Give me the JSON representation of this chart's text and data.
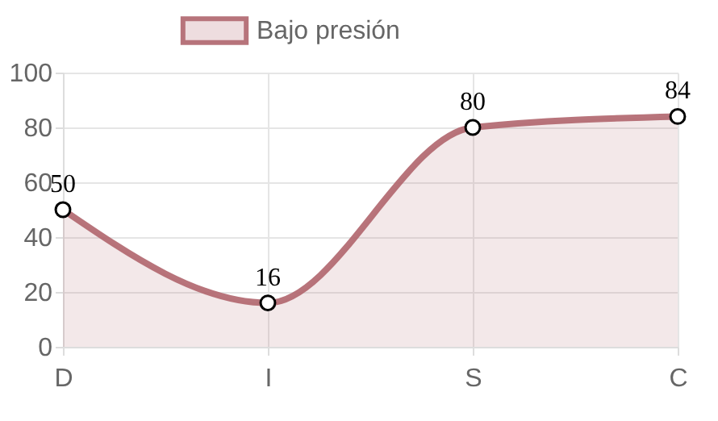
{
  "chart_data": {
    "type": "area",
    "categories": [
      "D",
      "I",
      "S",
      "C"
    ],
    "series": [
      {
        "name": "Bajo presión",
        "color": "#b0656d",
        "values": [
          50,
          16,
          80,
          84
        ]
      }
    ],
    "ylim": [
      0,
      100
    ],
    "yticks": [
      0,
      20,
      40,
      60,
      80,
      100
    ],
    "grid": true,
    "legend": "top",
    "marker": "circle",
    "data_labels": true
  }
}
